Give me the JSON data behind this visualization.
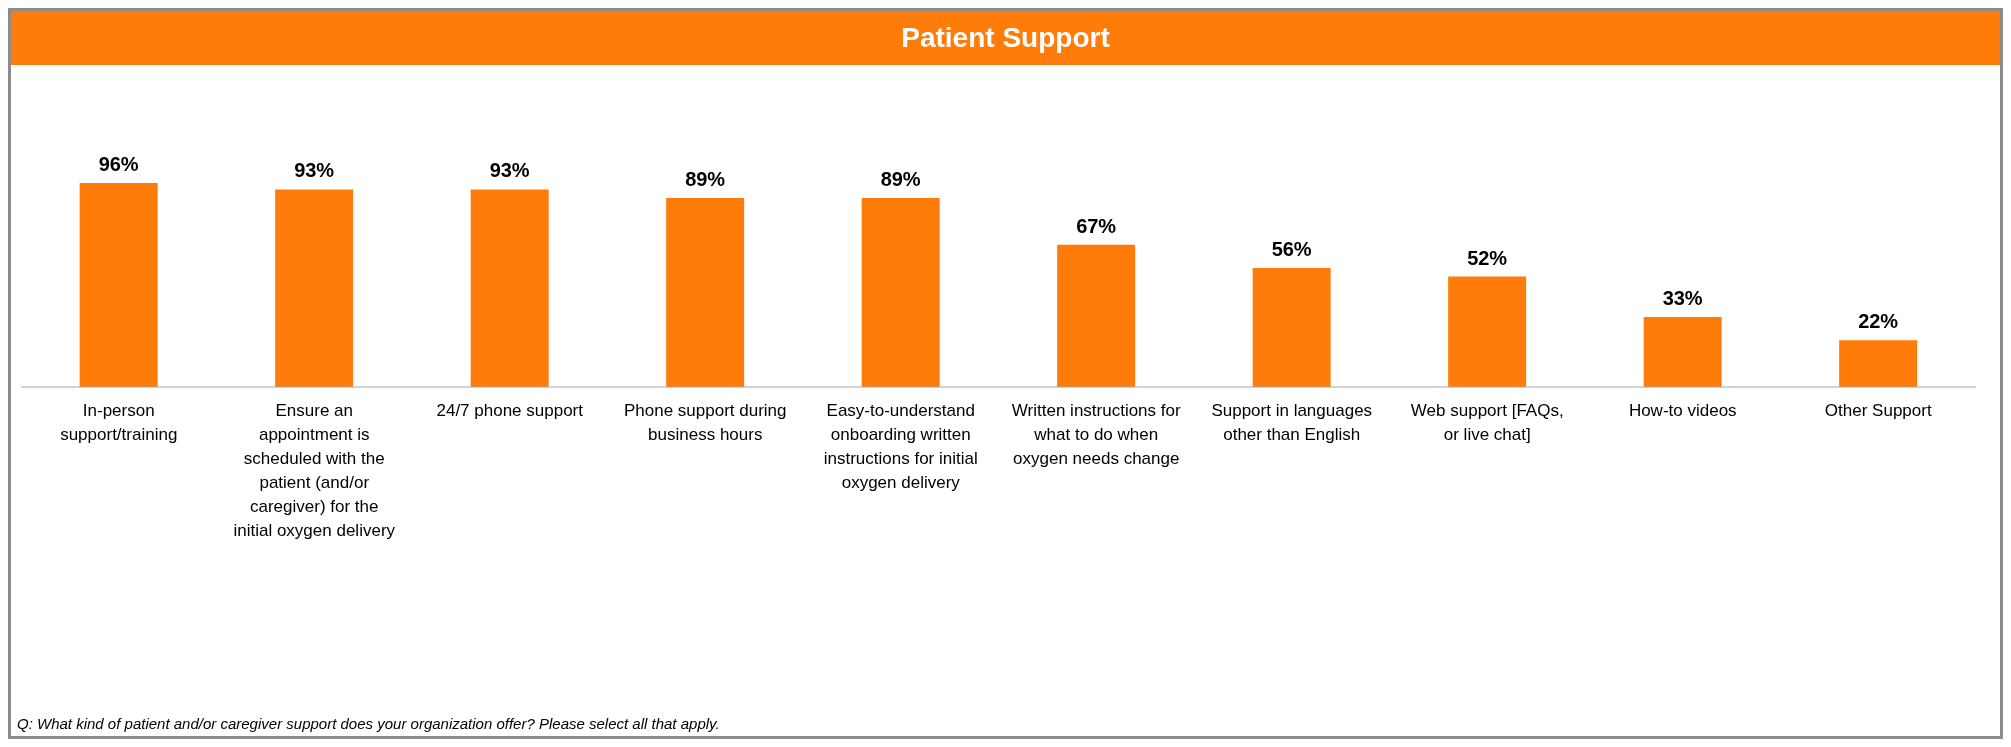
{
  "chart_data": {
    "type": "bar",
    "title": "Patient Support",
    "categories": [
      "In-person support/training",
      "Ensure an appointment is scheduled with the patient (and/or caregiver) for the initial oxygen delivery",
      "24/7 phone support",
      "Phone support during business hours",
      "Easy-to-understand onboarding written instructions for initial oxygen delivery",
      "Written instructions for what to do when oxygen needs change",
      "Support in languages other than English",
      "Web support [FAQs, or live chat]",
      "How-to videos",
      "Other Support"
    ],
    "values": [
      96,
      93,
      93,
      89,
      89,
      67,
      56,
      52,
      33,
      22
    ],
    "value_labels": [
      "96%",
      "93%",
      "93%",
      "89%",
      "89%",
      "67%",
      "56%",
      "52%",
      "33%",
      "22%"
    ],
    "color": "#ff7c0a",
    "grid": false,
    "legend": false,
    "annotations": [
      "Q: What kind of patient and/or caregiver support does your organization offer? Please select all that apply."
    ]
  }
}
